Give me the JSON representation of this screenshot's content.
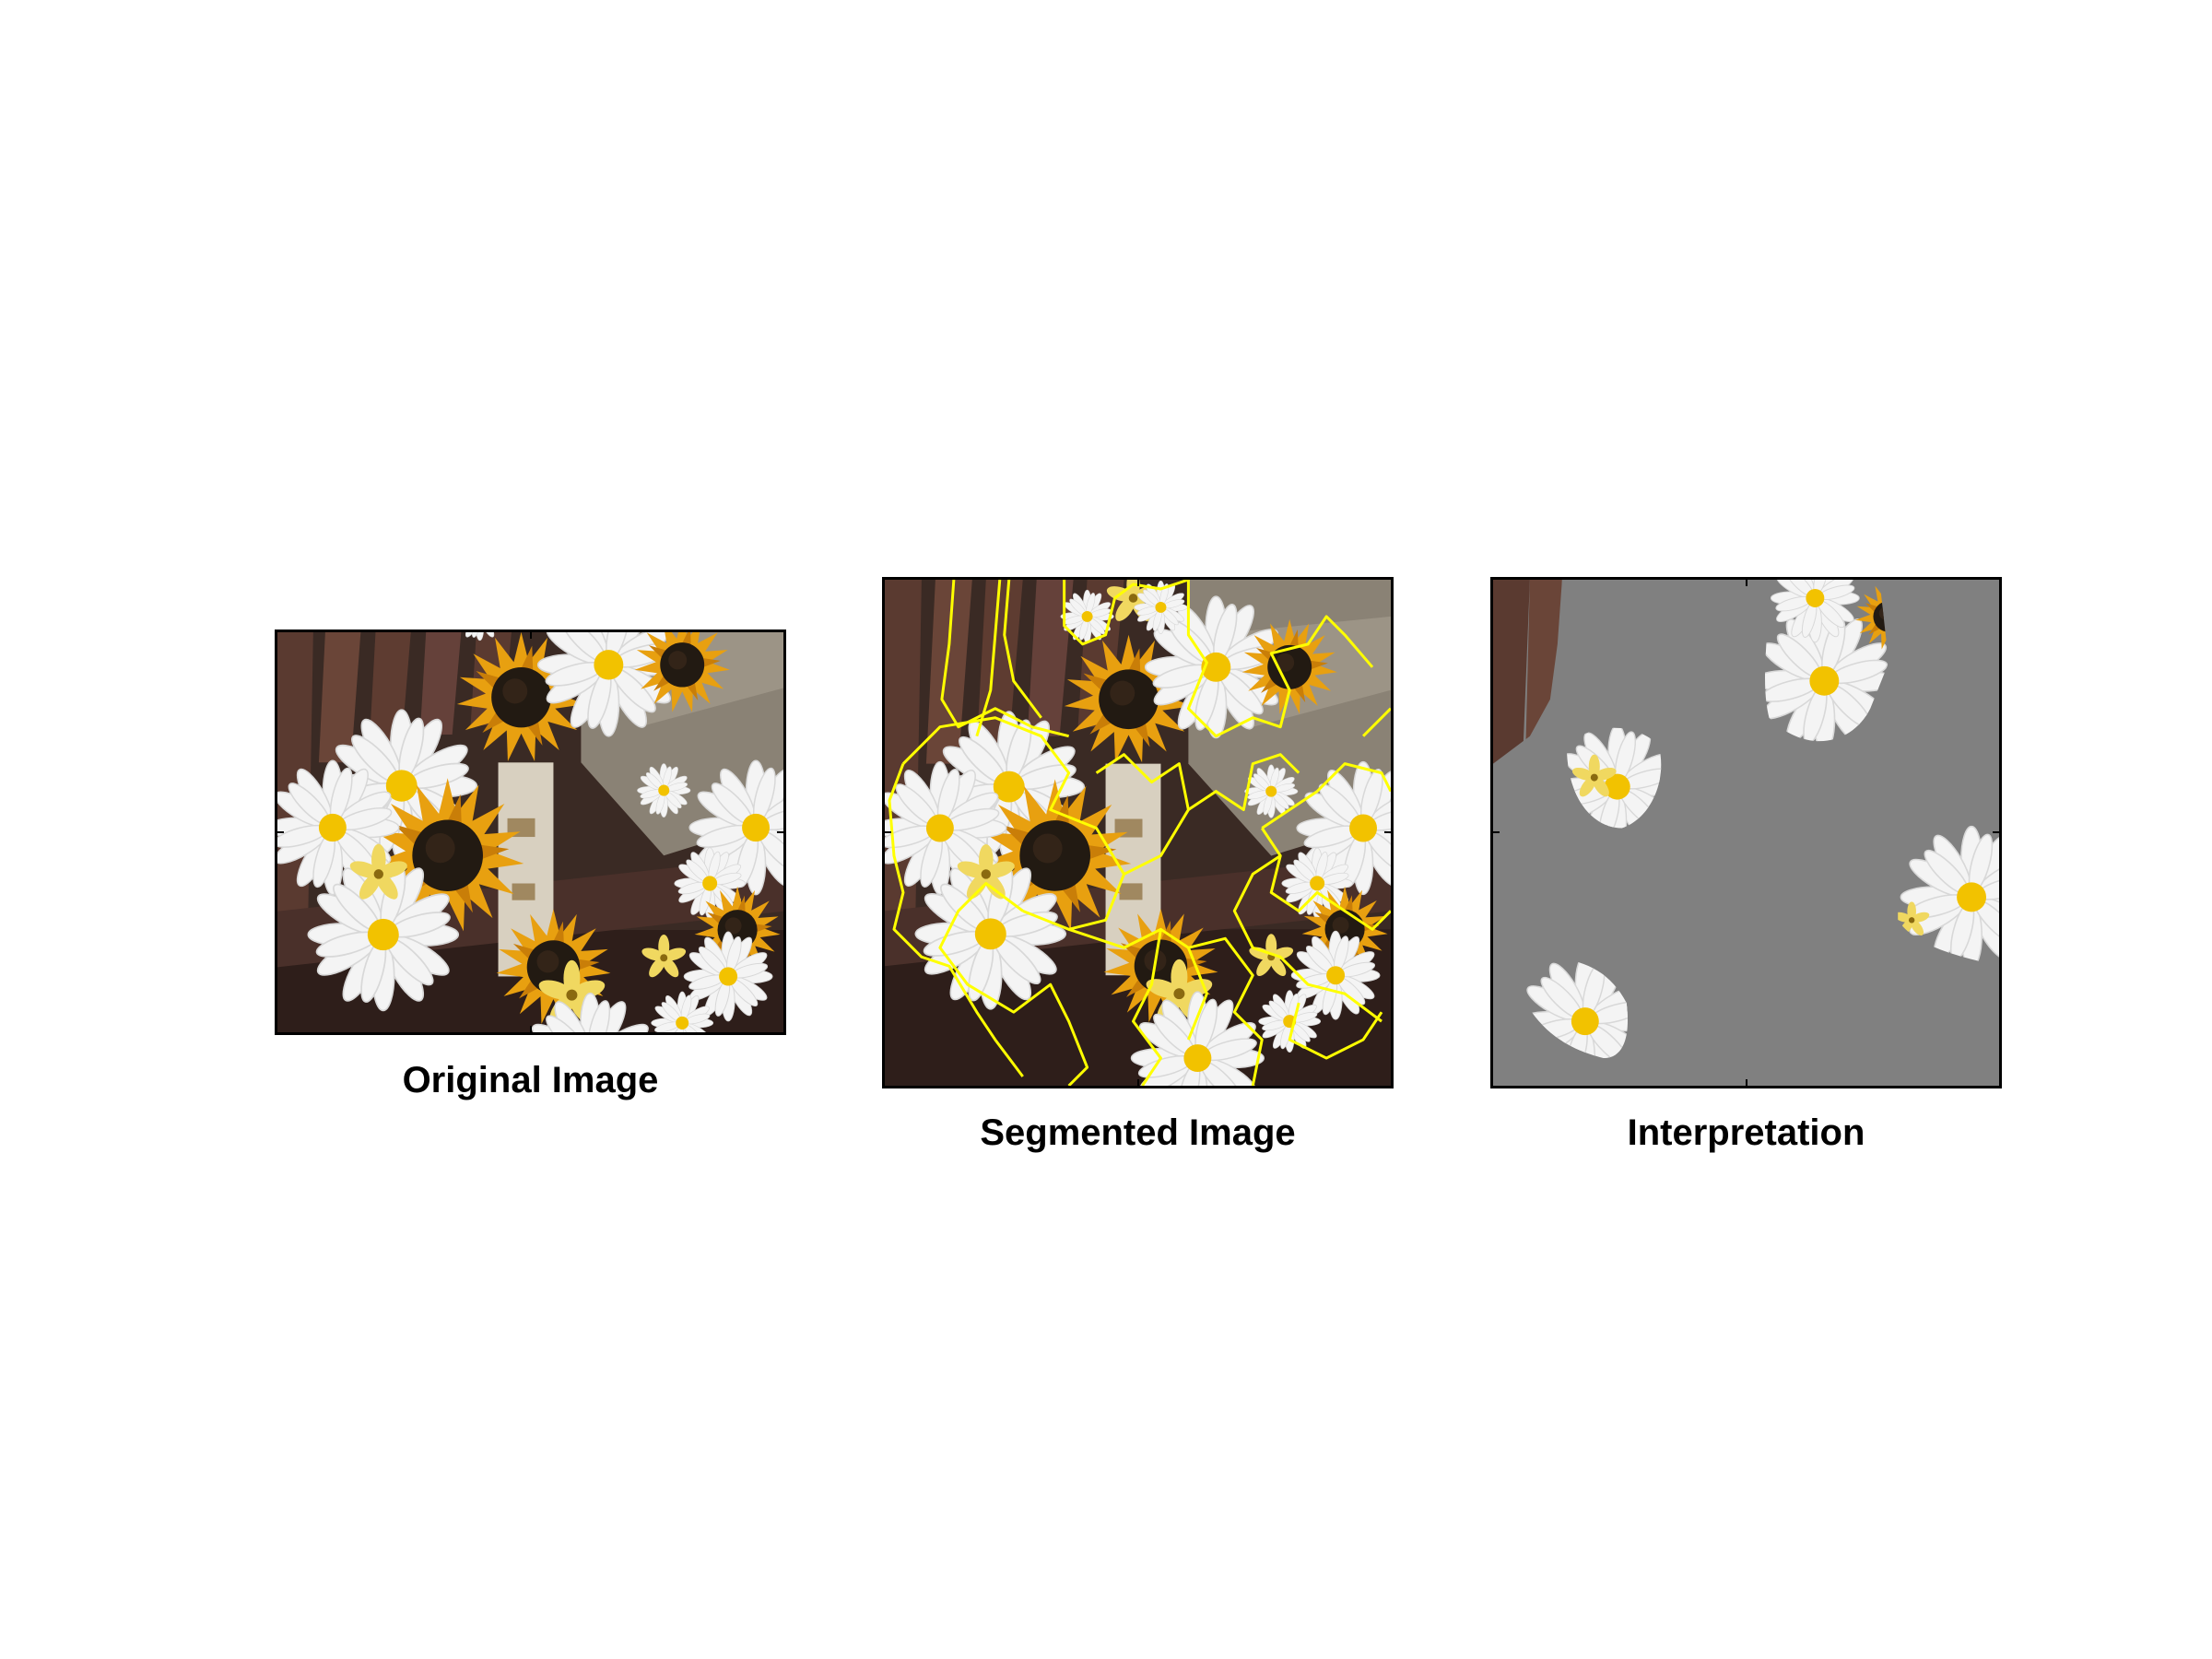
{
  "figure": {
    "panels": [
      {
        "id": "original",
        "caption": "Original Image"
      },
      {
        "id": "segmented",
        "caption": "Segmented Image"
      },
      {
        "id": "interpretation",
        "caption": "Interpretation"
      }
    ],
    "colors": {
      "bench_wood": "#5a3a30",
      "bench_dark": "#2e1e1a",
      "sunflower_petal": "#e8a010",
      "sunflower_center": "#221a12",
      "daisy_petal": "#f4f4f4",
      "daisy_center": "#f2c200",
      "segment_boundary": "#ffff00",
      "mask_gray": "#808080",
      "stone": "#8a8275"
    }
  }
}
